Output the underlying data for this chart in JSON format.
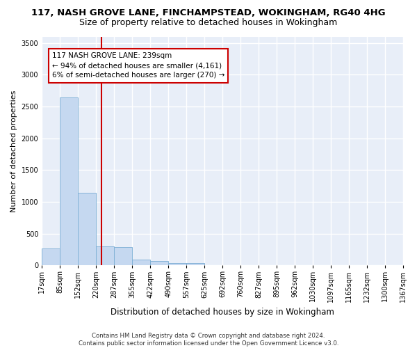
{
  "title": "117, NASH GROVE LANE, FINCHAMPSTEAD, WOKINGHAM, RG40 4HG",
  "subtitle": "Size of property relative to detached houses in Wokingham",
  "xlabel": "Distribution of detached houses by size in Wokingham",
  "ylabel": "Number of detached properties",
  "bar_color": "#c5d8f0",
  "bar_edge_color": "#7aadd4",
  "vline_x": 239,
  "vline_color": "#cc0000",
  "annotation_text": "117 NASH GROVE LANE: 239sqm\n← 94% of detached houses are smaller (4,161)\n6% of semi-detached houses are larger (270) →",
  "annotation_box_color": "#cc0000",
  "bin_edges": [
    17,
    85,
    152,
    220,
    287,
    355,
    422,
    490,
    557,
    625,
    692,
    760,
    827,
    895,
    962,
    1030,
    1097,
    1165,
    1232,
    1300,
    1367
  ],
  "bin_labels": [
    "17sqm",
    "85sqm",
    "152sqm",
    "220sqm",
    "287sqm",
    "355sqm",
    "422sqm",
    "490sqm",
    "557sqm",
    "625sqm",
    "692sqm",
    "760sqm",
    "827sqm",
    "895sqm",
    "962sqm",
    "1030sqm",
    "1097sqm",
    "1165sqm",
    "1232sqm",
    "1300sqm",
    "1367sqm"
  ],
  "bar_heights": [
    270,
    2640,
    1140,
    300,
    290,
    95,
    65,
    40,
    30,
    0,
    0,
    0,
    0,
    0,
    0,
    0,
    0,
    0,
    0,
    0
  ],
  "ylim": [
    0,
    3600
  ],
  "yticks": [
    0,
    500,
    1000,
    1500,
    2000,
    2500,
    3000,
    3500
  ],
  "background_color": "#ffffff",
  "plot_bg_color": "#e8eef8",
  "grid_color": "#ffffff",
  "footer_text": "Contains HM Land Registry data © Crown copyright and database right 2024.\nContains public sector information licensed under the Open Government Licence v3.0.",
  "title_fontsize": 9.5,
  "subtitle_fontsize": 9,
  "xlabel_fontsize": 8.5,
  "ylabel_fontsize": 8,
  "tick_fontsize": 7,
  "annot_fontsize": 7.5,
  "footer_fontsize": 6.2
}
